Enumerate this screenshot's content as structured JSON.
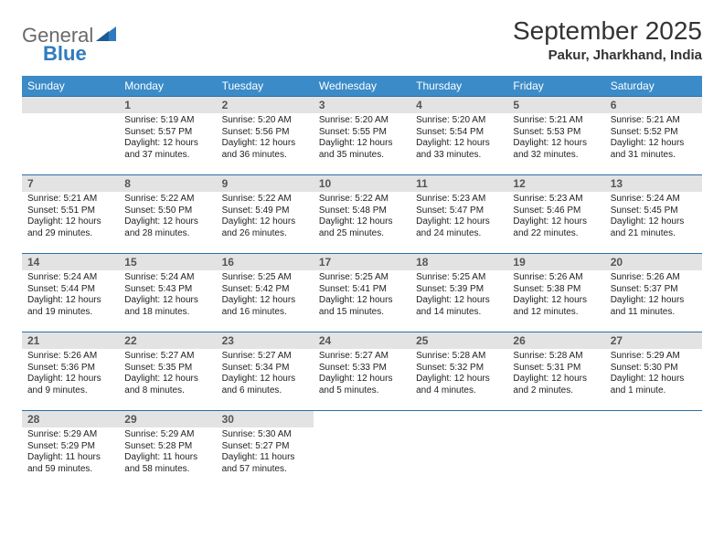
{
  "logo": {
    "text1": "General",
    "text2": "Blue"
  },
  "title": "September 2025",
  "location": "Pakur, Jharkhand, India",
  "colors": {
    "header_bg": "#3b8bc8",
    "header_text": "#ffffff",
    "daynum_bg": "#e3e3e3",
    "daynum_text": "#555555",
    "body_text": "#222222",
    "row_border": "#2b6fa8",
    "logo_gray": "#6a6a6a",
    "logo_blue": "#2f7bbf"
  },
  "weekdays": [
    "Sunday",
    "Monday",
    "Tuesday",
    "Wednesday",
    "Thursday",
    "Friday",
    "Saturday"
  ],
  "weeks": [
    [
      null,
      {
        "n": "1",
        "sr": "Sunrise: 5:19 AM",
        "ss": "Sunset: 5:57 PM",
        "d1": "Daylight: 12 hours",
        "d2": "and 37 minutes."
      },
      {
        "n": "2",
        "sr": "Sunrise: 5:20 AM",
        "ss": "Sunset: 5:56 PM",
        "d1": "Daylight: 12 hours",
        "d2": "and 36 minutes."
      },
      {
        "n": "3",
        "sr": "Sunrise: 5:20 AM",
        "ss": "Sunset: 5:55 PM",
        "d1": "Daylight: 12 hours",
        "d2": "and 35 minutes."
      },
      {
        "n": "4",
        "sr": "Sunrise: 5:20 AM",
        "ss": "Sunset: 5:54 PM",
        "d1": "Daylight: 12 hours",
        "d2": "and 33 minutes."
      },
      {
        "n": "5",
        "sr": "Sunrise: 5:21 AM",
        "ss": "Sunset: 5:53 PM",
        "d1": "Daylight: 12 hours",
        "d2": "and 32 minutes."
      },
      {
        "n": "6",
        "sr": "Sunrise: 5:21 AM",
        "ss": "Sunset: 5:52 PM",
        "d1": "Daylight: 12 hours",
        "d2": "and 31 minutes."
      }
    ],
    [
      {
        "n": "7",
        "sr": "Sunrise: 5:21 AM",
        "ss": "Sunset: 5:51 PM",
        "d1": "Daylight: 12 hours",
        "d2": "and 29 minutes."
      },
      {
        "n": "8",
        "sr": "Sunrise: 5:22 AM",
        "ss": "Sunset: 5:50 PM",
        "d1": "Daylight: 12 hours",
        "d2": "and 28 minutes."
      },
      {
        "n": "9",
        "sr": "Sunrise: 5:22 AM",
        "ss": "Sunset: 5:49 PM",
        "d1": "Daylight: 12 hours",
        "d2": "and 26 minutes."
      },
      {
        "n": "10",
        "sr": "Sunrise: 5:22 AM",
        "ss": "Sunset: 5:48 PM",
        "d1": "Daylight: 12 hours",
        "d2": "and 25 minutes."
      },
      {
        "n": "11",
        "sr": "Sunrise: 5:23 AM",
        "ss": "Sunset: 5:47 PM",
        "d1": "Daylight: 12 hours",
        "d2": "and 24 minutes."
      },
      {
        "n": "12",
        "sr": "Sunrise: 5:23 AM",
        "ss": "Sunset: 5:46 PM",
        "d1": "Daylight: 12 hours",
        "d2": "and 22 minutes."
      },
      {
        "n": "13",
        "sr": "Sunrise: 5:24 AM",
        "ss": "Sunset: 5:45 PM",
        "d1": "Daylight: 12 hours",
        "d2": "and 21 minutes."
      }
    ],
    [
      {
        "n": "14",
        "sr": "Sunrise: 5:24 AM",
        "ss": "Sunset: 5:44 PM",
        "d1": "Daylight: 12 hours",
        "d2": "and 19 minutes."
      },
      {
        "n": "15",
        "sr": "Sunrise: 5:24 AM",
        "ss": "Sunset: 5:43 PM",
        "d1": "Daylight: 12 hours",
        "d2": "and 18 minutes."
      },
      {
        "n": "16",
        "sr": "Sunrise: 5:25 AM",
        "ss": "Sunset: 5:42 PM",
        "d1": "Daylight: 12 hours",
        "d2": "and 16 minutes."
      },
      {
        "n": "17",
        "sr": "Sunrise: 5:25 AM",
        "ss": "Sunset: 5:41 PM",
        "d1": "Daylight: 12 hours",
        "d2": "and 15 minutes."
      },
      {
        "n": "18",
        "sr": "Sunrise: 5:25 AM",
        "ss": "Sunset: 5:39 PM",
        "d1": "Daylight: 12 hours",
        "d2": "and 14 minutes."
      },
      {
        "n": "19",
        "sr": "Sunrise: 5:26 AM",
        "ss": "Sunset: 5:38 PM",
        "d1": "Daylight: 12 hours",
        "d2": "and 12 minutes."
      },
      {
        "n": "20",
        "sr": "Sunrise: 5:26 AM",
        "ss": "Sunset: 5:37 PM",
        "d1": "Daylight: 12 hours",
        "d2": "and 11 minutes."
      }
    ],
    [
      {
        "n": "21",
        "sr": "Sunrise: 5:26 AM",
        "ss": "Sunset: 5:36 PM",
        "d1": "Daylight: 12 hours",
        "d2": "and 9 minutes."
      },
      {
        "n": "22",
        "sr": "Sunrise: 5:27 AM",
        "ss": "Sunset: 5:35 PM",
        "d1": "Daylight: 12 hours",
        "d2": "and 8 minutes."
      },
      {
        "n": "23",
        "sr": "Sunrise: 5:27 AM",
        "ss": "Sunset: 5:34 PM",
        "d1": "Daylight: 12 hours",
        "d2": "and 6 minutes."
      },
      {
        "n": "24",
        "sr": "Sunrise: 5:27 AM",
        "ss": "Sunset: 5:33 PM",
        "d1": "Daylight: 12 hours",
        "d2": "and 5 minutes."
      },
      {
        "n": "25",
        "sr": "Sunrise: 5:28 AM",
        "ss": "Sunset: 5:32 PM",
        "d1": "Daylight: 12 hours",
        "d2": "and 4 minutes."
      },
      {
        "n": "26",
        "sr": "Sunrise: 5:28 AM",
        "ss": "Sunset: 5:31 PM",
        "d1": "Daylight: 12 hours",
        "d2": "and 2 minutes."
      },
      {
        "n": "27",
        "sr": "Sunrise: 5:29 AM",
        "ss": "Sunset: 5:30 PM",
        "d1": "Daylight: 12 hours",
        "d2": "and 1 minute."
      }
    ],
    [
      {
        "n": "28",
        "sr": "Sunrise: 5:29 AM",
        "ss": "Sunset: 5:29 PM",
        "d1": "Daylight: 11 hours",
        "d2": "and 59 minutes."
      },
      {
        "n": "29",
        "sr": "Sunrise: 5:29 AM",
        "ss": "Sunset: 5:28 PM",
        "d1": "Daylight: 11 hours",
        "d2": "and 58 minutes."
      },
      {
        "n": "30",
        "sr": "Sunrise: 5:30 AM",
        "ss": "Sunset: 5:27 PM",
        "d1": "Daylight: 11 hours",
        "d2": "and 57 minutes."
      },
      null,
      null,
      null,
      null
    ]
  ]
}
